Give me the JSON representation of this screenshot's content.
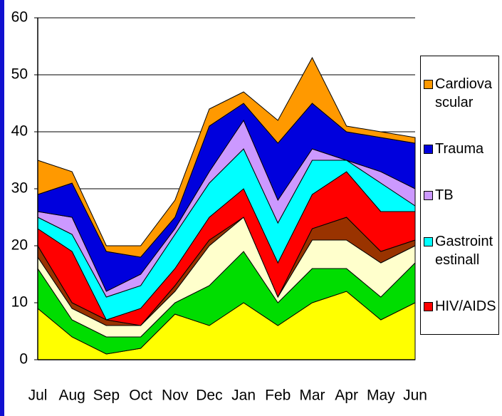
{
  "chart_data": {
    "type": "stacked_area",
    "categories": [
      "Jul",
      "Aug",
      "Sep",
      "Oct",
      "Nov",
      "Dec",
      "Jan",
      "Feb",
      "Mar",
      "Apr",
      "May",
      "Jun"
    ],
    "series": [
      {
        "color": "#ffff00",
        "values": [
          9,
          4,
          1,
          2,
          8,
          6,
          10,
          6,
          10,
          12,
          7,
          10
        ]
      },
      {
        "color": "#00dd00",
        "values": [
          7,
          3,
          3,
          2,
          2,
          7,
          9,
          4,
          6,
          4,
          4,
          7
        ]
      },
      {
        "color": "#ffffcc",
        "values": [
          2,
          2,
          2,
          2,
          2,
          7,
          6,
          1,
          5,
          5,
          6,
          3
        ]
      },
      {
        "color": "#993300",
        "values": [
          2,
          1,
          1,
          0,
          1,
          1,
          0,
          0,
          2,
          4,
          2,
          1
        ]
      },
      {
        "name": "HIV/AIDS",
        "color": "#ff0000",
        "values": [
          3,
          9,
          0,
          3,
          3,
          4,
          5,
          6,
          6,
          8,
          7,
          5
        ]
      },
      {
        "name": "Gastrointestinall",
        "color": "#00ffff",
        "values": [
          2,
          3,
          4,
          4,
          6,
          6,
          7,
          7,
          6,
          2,
          5,
          1
        ]
      },
      {
        "name": "TB",
        "color": "#cc99ff",
        "values": [
          1,
          3,
          1,
          2,
          1,
          2,
          5,
          4,
          2,
          0,
          2,
          3
        ]
      },
      {
        "name": "Trauma",
        "color": "#0000dd",
        "values": [
          3,
          6,
          7,
          3,
          2,
          8,
          3,
          10,
          8,
          5,
          6,
          8
        ]
      },
      {
        "name": "Cardiovascular",
        "color": "#ff9900",
        "values": [
          6,
          2,
          1,
          2,
          3,
          3,
          2,
          4,
          8,
          1,
          1,
          1
        ]
      }
    ],
    "ylim": [
      0,
      60
    ],
    "yticks": [
      0,
      10,
      20,
      30,
      40,
      50,
      60
    ],
    "grid": true
  }
}
